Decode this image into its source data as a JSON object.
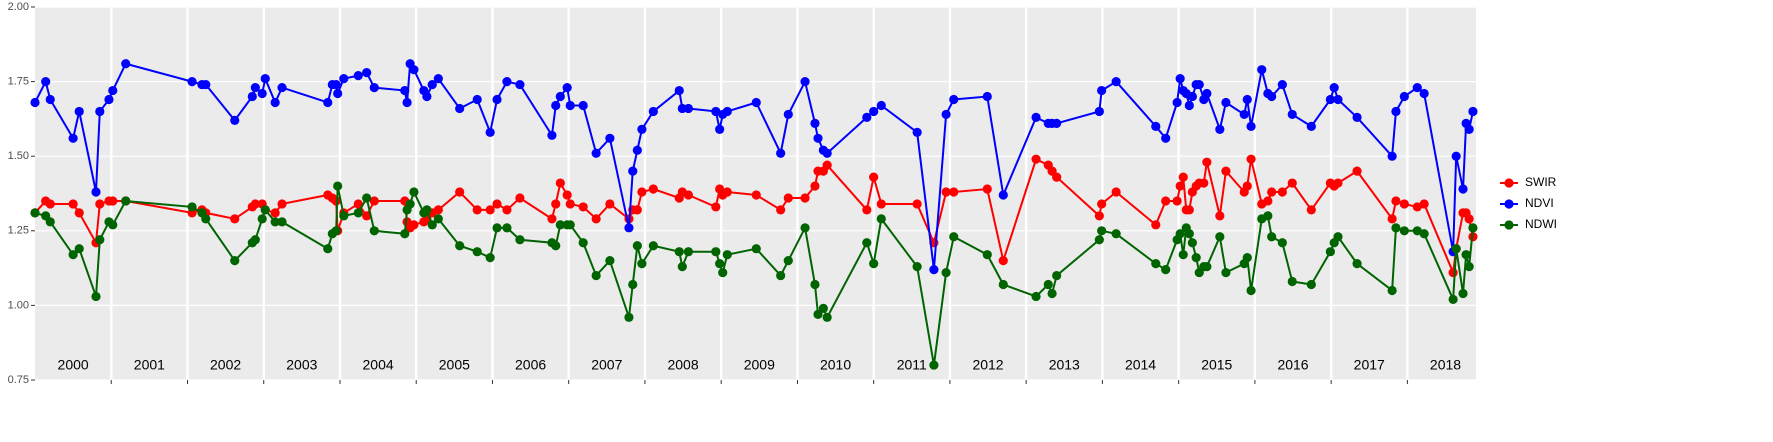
{
  "chart_data": {
    "type": "line",
    "x": [
      2000.0,
      2000.14,
      2000.2,
      2000.5,
      2000.58,
      2000.8,
      2000.85,
      2000.97,
      2001.02,
      2001.19,
      2002.06,
      2002.19,
      2002.24,
      2002.62,
      2002.85,
      2002.89,
      2002.98,
      2003.02,
      2003.15,
      2003.24,
      2003.84,
      2003.9,
      2003.95,
      2003.97,
      2004.05,
      2004.24,
      2004.35,
      2004.45,
      2004.85,
      2004.88,
      2004.92,
      2004.97,
      2005.1,
      2005.14,
      2005.21,
      2005.29,
      2005.57,
      2005.8,
      2005.97,
      2006.06,
      2006.19,
      2006.36,
      2006.78,
      2006.83,
      2006.89,
      2006.98,
      2007.02,
      2007.19,
      2007.36,
      2007.54,
      2007.79,
      2007.84,
      2007.9,
      2007.96,
      2008.11,
      2008.45,
      2008.49,
      2008.57,
      2008.93,
      2008.98,
      2009.02,
      2009.08,
      2009.46,
      2009.78,
      2009.88,
      2010.1,
      2010.23,
      2010.27,
      2010.34,
      2010.39,
      2010.91,
      2011.0,
      2011.1,
      2011.57,
      2011.79,
      2011.95,
      2012.05,
      2012.49,
      2012.7,
      2013.13,
      2013.29,
      2013.34,
      2013.4,
      2013.96,
      2013.99,
      2014.18,
      2014.7,
      2014.83,
      2014.98,
      2015.02,
      2015.06,
      2015.1,
      2015.14,
      2015.18,
      2015.23,
      2015.27,
      2015.33,
      2015.37,
      2015.54,
      2015.62,
      2015.86,
      2015.9,
      2015.95,
      2016.09,
      2016.17,
      2016.22,
      2016.36,
      2016.49,
      2016.74,
      2016.99,
      2017.04,
      2017.09,
      2017.34,
      2017.8,
      2017.85,
      2017.96,
      2018.13,
      2018.22,
      2018.6,
      2018.64,
      2018.73,
      2018.77,
      2018.81,
      2018.86
    ],
    "series": [
      {
        "name": "SWIR",
        "color": "#ff0000",
        "values": [
          1.31,
          1.35,
          1.34,
          1.34,
          1.31,
          1.21,
          1.34,
          1.35,
          1.35,
          1.35,
          1.31,
          1.32,
          1.31,
          1.29,
          1.33,
          1.34,
          1.34,
          1.32,
          1.31,
          1.34,
          1.37,
          1.36,
          1.35,
          1.25,
          1.31,
          1.34,
          1.3,
          1.35,
          1.35,
          1.28,
          1.26,
          1.27,
          1.28,
          1.29,
          1.31,
          1.32,
          1.38,
          1.32,
          1.32,
          1.34,
          1.32,
          1.36,
          1.29,
          1.34,
          1.41,
          1.37,
          1.34,
          1.33,
          1.29,
          1.34,
          1.29,
          1.32,
          1.32,
          1.38,
          1.39,
          1.36,
          1.38,
          1.37,
          1.33,
          1.39,
          1.37,
          1.38,
          1.37,
          1.32,
          1.36,
          1.36,
          1.4,
          1.45,
          1.45,
          1.47,
          1.32,
          1.43,
          1.34,
          1.34,
          1.21,
          1.38,
          1.38,
          1.39,
          1.15,
          1.49,
          1.47,
          1.45,
          1.43,
          1.3,
          1.34,
          1.38,
          1.27,
          1.35,
          1.35,
          1.4,
          1.43,
          1.32,
          1.32,
          1.38,
          1.4,
          1.41,
          1.41,
          1.48,
          1.3,
          1.45,
          1.38,
          1.4,
          1.49,
          1.34,
          1.35,
          1.38,
          1.38,
          1.41,
          1.32,
          1.41,
          1.4,
          1.41,
          1.45,
          1.29,
          1.35,
          1.34,
          1.33,
          1.34,
          1.11,
          1.19,
          1.31,
          1.31,
          1.29,
          1.23
        ]
      },
      {
        "name": "NDVI",
        "color": "#0000ff",
        "values": [
          1.68,
          1.75,
          1.69,
          1.56,
          1.65,
          1.38,
          1.65,
          1.69,
          1.72,
          1.81,
          1.75,
          1.74,
          1.74,
          1.62,
          1.7,
          1.73,
          1.71,
          1.76,
          1.68,
          1.73,
          1.68,
          1.74,
          1.74,
          1.71,
          1.76,
          1.77,
          1.78,
          1.73,
          1.72,
          1.68,
          1.81,
          1.79,
          1.72,
          1.7,
          1.74,
          1.76,
          1.66,
          1.69,
          1.58,
          1.69,
          1.75,
          1.74,
          1.57,
          1.67,
          1.7,
          1.73,
          1.67,
          1.67,
          1.51,
          1.56,
          1.26,
          1.45,
          1.52,
          1.59,
          1.65,
          1.72,
          1.66,
          1.66,
          1.65,
          1.59,
          1.64,
          1.65,
          1.68,
          1.51,
          1.64,
          1.75,
          1.61,
          1.56,
          1.52,
          1.51,
          1.63,
          1.65,
          1.67,
          1.58,
          1.12,
          1.64,
          1.69,
          1.7,
          1.37,
          1.63,
          1.61,
          1.61,
          1.61,
          1.65,
          1.72,
          1.75,
          1.6,
          1.56,
          1.68,
          1.76,
          1.72,
          1.71,
          1.67,
          1.7,
          1.74,
          1.74,
          1.69,
          1.71,
          1.59,
          1.68,
          1.64,
          1.69,
          1.6,
          1.79,
          1.71,
          1.7,
          1.74,
          1.64,
          1.6,
          1.69,
          1.73,
          1.69,
          1.63,
          1.5,
          1.65,
          1.7,
          1.73,
          1.71,
          1.18,
          1.5,
          1.39,
          1.61,
          1.59,
          1.65
        ]
      },
      {
        "name": "NDWI",
        "color": "#006400",
        "values": [
          1.31,
          1.3,
          1.28,
          1.17,
          1.19,
          1.03,
          1.22,
          1.28,
          1.27,
          1.35,
          1.33,
          1.31,
          1.29,
          1.15,
          1.21,
          1.22,
          1.29,
          1.32,
          1.28,
          1.28,
          1.19,
          1.24,
          1.25,
          1.4,
          1.3,
          1.31,
          1.36,
          1.25,
          1.24,
          1.32,
          1.34,
          1.38,
          1.31,
          1.32,
          1.27,
          1.29,
          1.2,
          1.18,
          1.16,
          1.26,
          1.26,
          1.22,
          1.21,
          1.2,
          1.27,
          1.27,
          1.27,
          1.21,
          1.1,
          1.15,
          0.96,
          1.07,
          1.2,
          1.14,
          1.2,
          1.18,
          1.13,
          1.18,
          1.18,
          1.14,
          1.11,
          1.17,
          1.19,
          1.1,
          1.15,
          1.26,
          1.07,
          0.97,
          0.99,
          0.96,
          1.21,
          1.14,
          1.29,
          1.13,
          0.8,
          1.11,
          1.23,
          1.17,
          1.07,
          1.03,
          1.07,
          1.04,
          1.1,
          1.22,
          1.25,
          1.24,
          1.14,
          1.12,
          1.22,
          1.24,
          1.17,
          1.26,
          1.24,
          1.21,
          1.16,
          1.11,
          1.13,
          1.13,
          1.23,
          1.11,
          1.14,
          1.16,
          1.05,
          1.29,
          1.3,
          1.23,
          1.21,
          1.08,
          1.07,
          1.18,
          1.21,
          1.23,
          1.14,
          1.05,
          1.26,
          1.25,
          1.25,
          1.24,
          1.02,
          1.19,
          1.04,
          1.17,
          1.13,
          1.26
        ]
      }
    ],
    "xlim": [
      2000,
      2018.9
    ],
    "xticks": [
      2001,
      2002,
      2003,
      2004,
      2005,
      2006,
      2007,
      2008,
      2009,
      2010,
      2011,
      2012,
      2013,
      2014,
      2015,
      2016,
      2017,
      2018
    ],
    "year_labels": [
      2000,
      2001,
      2002,
      2003,
      2004,
      2005,
      2006,
      2007,
      2008,
      2009,
      2010,
      2011,
      2012,
      2013,
      2014,
      2015,
      2016,
      2017,
      2018
    ],
    "ylim": [
      0.75,
      2.0
    ],
    "yticks": [
      {
        "value": 0.75,
        "label": "0.75"
      },
      {
        "value": 1.0,
        "label": "1.00"
      },
      {
        "value": 1.25,
        "label": "1.25"
      },
      {
        "value": 1.5,
        "label": "1.50"
      },
      {
        "value": 1.75,
        "label": "1.75"
      },
      {
        "value": 2.0,
        "label": "2.00"
      }
    ],
    "grid": true,
    "legend_order": [
      0,
      1,
      2
    ],
    "legend": "right"
  }
}
